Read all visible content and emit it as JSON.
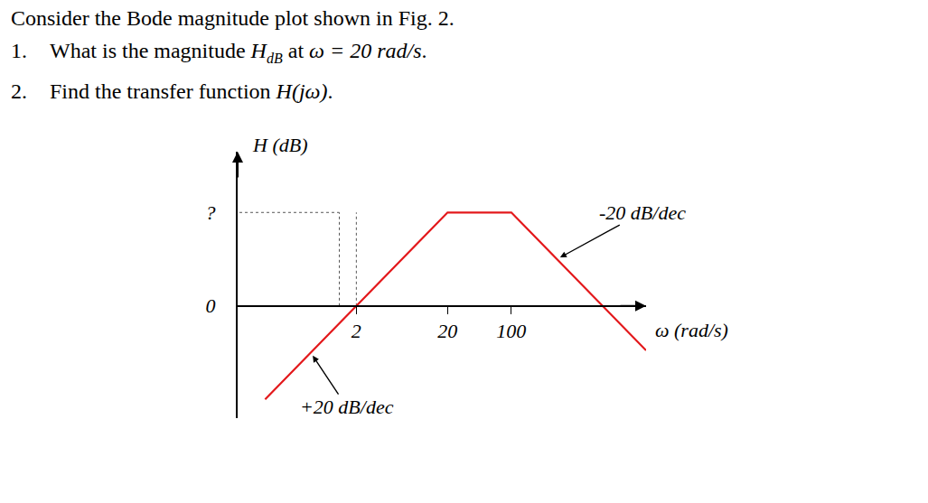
{
  "question": {
    "intro": "Consider the Bode magnitude plot shown in Fig. 2.",
    "items": [
      {
        "number": "1.",
        "parts": [
          {
            "text": "What is the magnitude "
          },
          {
            "text": "H",
            "sub": "dB",
            "italic": true
          },
          {
            "text": " at "
          },
          {
            "text": "ω = 20 rad/s",
            "italic": true
          },
          {
            "text": "."
          }
        ]
      },
      {
        "number": "2.",
        "parts": [
          {
            "text": "Find the transfer function "
          },
          {
            "text": "H(jω)",
            "italic": true
          },
          {
            "text": "."
          }
        ]
      }
    ]
  },
  "chart_data": {
    "type": "line",
    "xlabel": "ω (rad/s)",
    "ylabel": "H (dB)",
    "log": "x",
    "x": [
      0.2,
      2,
      20,
      100,
      1000,
      3000
    ],
    "series": [
      {
        "values": [
          -20,
          0,
          20,
          20,
          0,
          -9.5
        ],
        "color": "#e3181b"
      }
    ],
    "xlim": [
      0.1,
      3000
    ],
    "ylim": [
      -24,
      33
    ],
    "xticks": [
      2,
      20,
      100
    ],
    "yticks": [
      0,
      {
        "value": 20,
        "label": "?"
      }
    ],
    "annotations": [
      "+20 dB/dec",
      "-20 dB/dec"
    ],
    "grid": false
  }
}
